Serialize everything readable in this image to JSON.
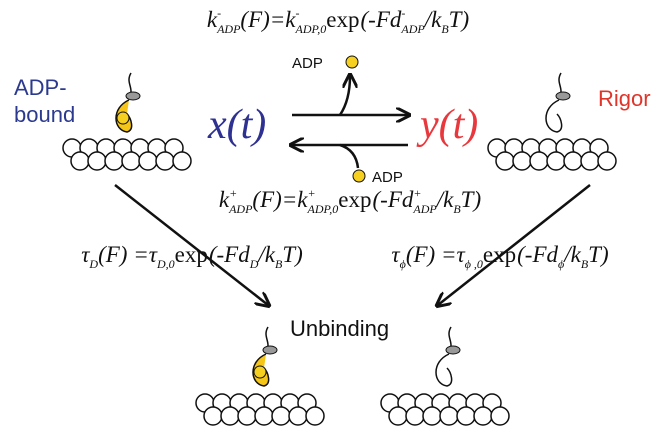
{
  "states": {
    "adp_bound": [
      "ADP-",
      "bound"
    ],
    "rigor": "Rigor",
    "unbinding": "Unbinding"
  },
  "variables": {
    "x": "x(t)",
    "y": "y(t)"
  },
  "adp_labels": {
    "release": "ADP",
    "binding": "ADP"
  },
  "equations": {
    "k_minus": [
      {
        "text": "k",
        "style": "it"
      },
      {
        "text": "-",
        "style": "sup"
      },
      {
        "text": "ADP",
        "style": "sub"
      },
      {
        "text": "(F)=",
        "style": "it"
      },
      {
        "text": "k",
        "style": "it"
      },
      {
        "text": "-",
        "style": "sup"
      },
      {
        "text": "ADP,0",
        "style": "sub"
      },
      {
        "text": "exp",
        "style": "rm"
      },
      {
        "text": "(-Fd",
        "style": "it"
      },
      {
        "text": "-",
        "style": "sup"
      },
      {
        "text": "ADP",
        "style": "sub"
      },
      {
        "text": "/k",
        "style": "it"
      },
      {
        "text": "B",
        "style": "sub"
      },
      {
        "text": "T)",
        "style": "it"
      }
    ],
    "k_plus": [
      {
        "text": "k",
        "style": "it"
      },
      {
        "text": "+",
        "style": "sup"
      },
      {
        "text": "ADP",
        "style": "sub"
      },
      {
        "text": "(F)=",
        "style": "it"
      },
      {
        "text": "k",
        "style": "it"
      },
      {
        "text": "+",
        "style": "sup"
      },
      {
        "text": "ADP,0",
        "style": "sub"
      },
      {
        "text": "exp",
        "style": "rm"
      },
      {
        "text": "(-Fd",
        "style": "it"
      },
      {
        "text": "+",
        "style": "sup"
      },
      {
        "text": "ADP",
        "style": "sub"
      },
      {
        "text": "/k",
        "style": "it"
      },
      {
        "text": "B",
        "style": "sub"
      },
      {
        "text": "T)",
        "style": "it"
      }
    ],
    "tau_d": [
      {
        "text": "τ",
        "style": "it"
      },
      {
        "text": "D",
        "style": "sub"
      },
      {
        "text": "(F) = ",
        "style": "it"
      },
      {
        "text": "τ",
        "style": "it"
      },
      {
        "text": "D,0",
        "style": "sub"
      },
      {
        "text": "exp",
        "style": "rm"
      },
      {
        "text": "(-Fd",
        "style": "it"
      },
      {
        "text": "D",
        "style": "sub"
      },
      {
        "text": "/k",
        "style": "it"
      },
      {
        "text": "B",
        "style": "sub"
      },
      {
        "text": "T)",
        "style": "it"
      }
    ],
    "tau_phi": [
      {
        "text": "τ",
        "style": "it"
      },
      {
        "text": "ϕ",
        "style": "sub"
      },
      {
        "text": "(F) = ",
        "style": "it"
      },
      {
        "text": "τ",
        "style": "it"
      },
      {
        "text": "ϕ ,0",
        "style": "sub"
      },
      {
        "text": "exp",
        "style": "rm"
      },
      {
        "text": "(-Fd",
        "style": "it"
      },
      {
        "text": "ϕ",
        "style": "sub"
      },
      {
        "text": "/k",
        "style": "it"
      },
      {
        "text": "B",
        "style": "sub"
      },
      {
        "text": "T)",
        "style": "it"
      }
    ]
  }
}
